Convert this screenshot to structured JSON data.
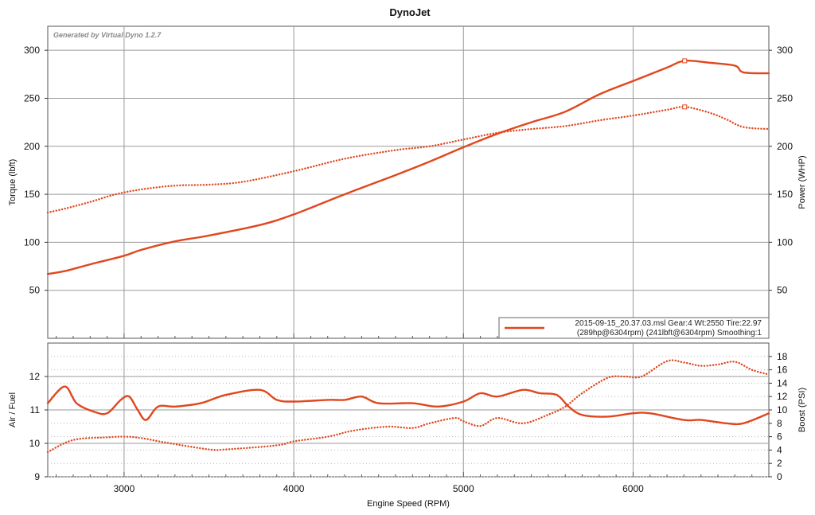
{
  "chart_data": [
    {
      "type": "line",
      "title": "DynoJet",
      "watermark": "Generated by Virtual Dyno 1.2.7",
      "xlim": [
        2550,
        6800
      ],
      "x_ticks": [
        3000,
        4000,
        5000,
        6000
      ],
      "ylabel": "Torque (lbft)",
      "ylim": [
        0,
        325
      ],
      "y_ticks": [
        50,
        100,
        150,
        200,
        250,
        300
      ],
      "y2label": "Power (WHP)",
      "y2lim": [
        0,
        325
      ],
      "y2_ticks": [
        50,
        100,
        150,
        200,
        250,
        300
      ],
      "color": "#e0471e",
      "series": [
        {
          "name": "Power (WHP)",
          "style": "solid",
          "x": [
            2550,
            2650,
            2800,
            3000,
            3100,
            3300,
            3500,
            3800,
            4000,
            4300,
            4600,
            4800,
            5000,
            5200,
            5400,
            5600,
            5800,
            6000,
            6200,
            6304,
            6450,
            6600,
            6650,
            6800
          ],
          "values": [
            67,
            70,
            77,
            86,
            92,
            101,
            107,
            118,
            129,
            150,
            170,
            184,
            199,
            213,
            225,
            236,
            254,
            268,
            282,
            289,
            287,
            284,
            277,
            276
          ]
        },
        {
          "name": "Torque (lbft)",
          "style": "dotted",
          "x": [
            2550,
            2650,
            2800,
            2950,
            3100,
            3300,
            3500,
            3700,
            4000,
            4300,
            4600,
            4800,
            5000,
            5200,
            5400,
            5600,
            5800,
            6000,
            6200,
            6304,
            6450,
            6550,
            6650,
            6800
          ],
          "values": [
            131,
            135,
            142,
            150,
            155,
            159,
            160,
            163,
            174,
            187,
            196,
            200,
            207,
            214,
            218,
            221,
            227,
            232,
            238,
            241,
            235,
            228,
            220,
            218
          ]
        }
      ],
      "peak_markers": [
        {
          "x": 6304,
          "value": 289
        },
        {
          "x": 6304,
          "value": 241
        }
      ],
      "legend": {
        "position": "bottom-right",
        "line1": "2015-09-15_20.37.03.msl Gear:4 Wt:2550 Tire:22.97",
        "line2": "(289hp@6304rpm) (241lbft@6304rpm) Smoothing:1"
      }
    },
    {
      "type": "line",
      "xlabel": "Engine Speed (RPM)",
      "xlim": [
        2550,
        6800
      ],
      "x_ticks": [
        3000,
        4000,
        5000,
        6000
      ],
      "ylabel": "Air / Fuel",
      "ylim": [
        9,
        13
      ],
      "y_ticks": [
        9,
        10,
        11,
        12
      ],
      "y2label": "Boost (PSI)",
      "y2lim": [
        0,
        20
      ],
      "y2_ticks": [
        0,
        2,
        4,
        6,
        8,
        10,
        12,
        14,
        16,
        18
      ],
      "color": "#e0471e",
      "series": [
        {
          "name": "Air / Fuel",
          "axis": "left",
          "style": "solid",
          "x": [
            2550,
            2650,
            2720,
            2820,
            2900,
            2980,
            3030,
            3080,
            3130,
            3200,
            3300,
            3450,
            3600,
            3800,
            3900,
            4000,
            4200,
            4300,
            4400,
            4500,
            4700,
            4850,
            5000,
            5100,
            5200,
            5350,
            5450,
            5550,
            5620,
            5700,
            5850,
            6000,
            6100,
            6300,
            6400,
            6550,
            6650,
            6800
          ],
          "values": [
            11.2,
            11.7,
            11.2,
            10.95,
            10.9,
            11.3,
            11.4,
            11.0,
            10.7,
            11.1,
            11.1,
            11.2,
            11.45,
            11.6,
            11.3,
            11.25,
            11.3,
            11.3,
            11.4,
            11.2,
            11.2,
            11.1,
            11.25,
            11.5,
            11.4,
            11.6,
            11.5,
            11.45,
            11.1,
            10.85,
            10.8,
            10.9,
            10.9,
            10.7,
            10.7,
            10.6,
            10.6,
            10.9
          ]
        },
        {
          "name": "Boost (PSI)",
          "axis": "right",
          "style": "dotted",
          "x": [
            2550,
            2700,
            2900,
            3000,
            3100,
            3250,
            3500,
            3600,
            3900,
            4000,
            4200,
            4350,
            4550,
            4700,
            4800,
            4950,
            5000,
            5100,
            5200,
            5350,
            5500,
            5600,
            5700,
            5850,
            5950,
            6050,
            6200,
            6300,
            6400,
            6500,
            6600,
            6700,
            6800
          ],
          "values": [
            3.7,
            5.5,
            5.9,
            6.0,
            5.8,
            5.1,
            4.1,
            4.1,
            4.7,
            5.3,
            6.0,
            6.9,
            7.5,
            7.3,
            8.0,
            8.8,
            8.3,
            7.6,
            8.8,
            8.0,
            9.3,
            10.5,
            12.5,
            14.8,
            15.0,
            15.0,
            17.3,
            17.1,
            16.6,
            16.8,
            17.2,
            16.0,
            15.3
          ]
        }
      ]
    }
  ]
}
